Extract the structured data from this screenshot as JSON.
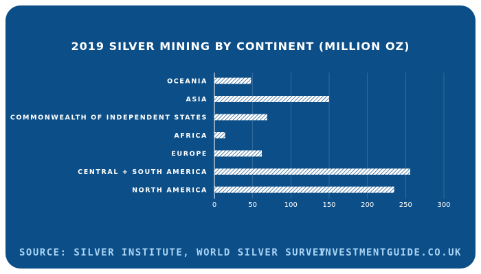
{
  "chart_data": {
    "type": "bar",
    "orientation": "horizontal",
    "title": "2019 SILVER MINING BY CONTINENT (MILLION OZ)",
    "categories": [
      "OCEANIA",
      "ASIA",
      "COMMONWEALTH OF INDEPENDENT STATES",
      "AFRICA",
      "EUROPE",
      "CENTRAL + SOUTH AMERICA",
      "NORTH AMERICA"
    ],
    "values": [
      48,
      150,
      69,
      14,
      62,
      256,
      235
    ],
    "xlim": [
      0,
      300
    ],
    "xticks": [
      0,
      50,
      100,
      150,
      200,
      250,
      300
    ],
    "grid": true,
    "xlabel": "",
    "ylabel": ""
  },
  "footer": {
    "source": "SOURCE: SILVER INSTITUTE, WORLD SILVER SURVEY",
    "site": "INVESTMENTGUIDE.CO.UK"
  },
  "colors": {
    "background": "#0c4e87",
    "bar_fill": "#ffffff",
    "bar_hatch": "#0c4e87",
    "footer_text": "#a9d4f5"
  }
}
